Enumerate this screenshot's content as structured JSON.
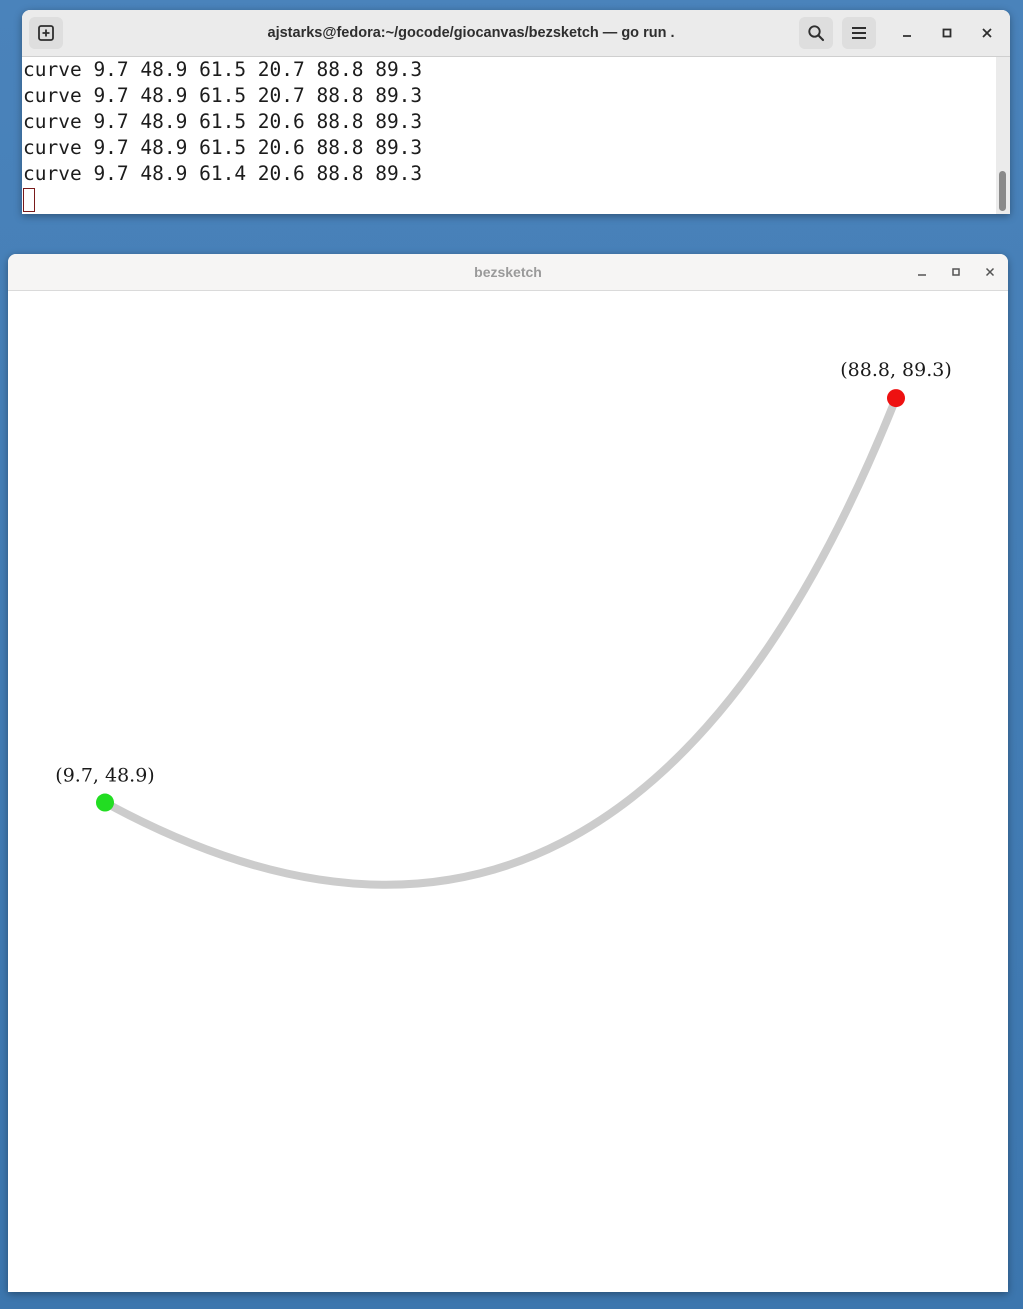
{
  "terminal": {
    "title": "ajstarks@fedora:~/gocode/giocanvas/bezsketch — go run .",
    "lines": [
      "curve 9.7 48.9 61.5 20.7 88.8 89.3",
      "curve 9.7 48.9 61.5 20.7 88.8 89.3",
      "curve 9.7 48.9 61.5 20.6 88.8 89.3",
      "curve 9.7 48.9 61.5 20.6 88.8 89.3",
      "curve 9.7 48.9 61.4 20.6 88.8 89.3"
    ],
    "icons": {
      "new_tab": "new-tab-icon",
      "search": "search-icon",
      "menu": "hamburger-menu-icon",
      "minimize": "minimize-icon",
      "maximize": "maximize-icon",
      "close": "close-icon"
    }
  },
  "app": {
    "title": "bezsketch",
    "curve": {
      "start": {
        "x": 9.7,
        "y": 48.9,
        "label": "(9.7, 48.9)",
        "color": "#22dd22"
      },
      "control": {
        "x": 61.5,
        "y": 20.7
      },
      "end": {
        "x": 88.8,
        "y": 89.3,
        "label": "(88.8, 89.3)",
        "color": "#ee1111"
      },
      "stroke_color": "#cccccc"
    }
  },
  "colors": {
    "desktop": "#3e78b0",
    "terminal_header": "#ebebeb",
    "app_header": "#f6f5f4"
  }
}
